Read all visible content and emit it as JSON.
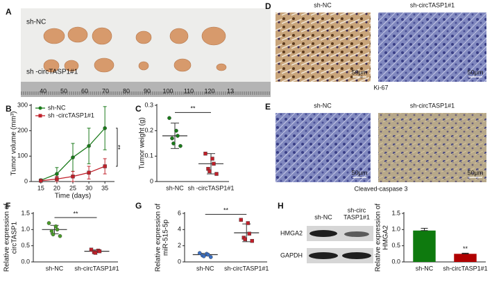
{
  "images": {
    "A": {
      "label": "A",
      "rows": [
        "sh-NC",
        "sh -circTASP1#1"
      ],
      "ruler": [
        "40",
        "50",
        "60",
        "70",
        "80",
        "90",
        "100",
        "110",
        "120",
        "13"
      ]
    },
    "D": {
      "label": "D",
      "columns": [
        "sh-NC",
        "sh-circTASP1#1"
      ],
      "scale": [
        "50μm",
        "50μm"
      ],
      "caption": "Ki-67"
    },
    "E": {
      "label": "E",
      "columns": [
        "sh-NC",
        "sh-circTASP1#1"
      ],
      "scale": [
        "50μm",
        "50μm"
      ],
      "caption": "Cleaved-caspase 3"
    },
    "H": {
      "label": "H",
      "columns": [
        [
          "sh-NC"
        ],
        [
          "sh-circ",
          "TASP1#1"
        ]
      ],
      "rows": [
        "HMGA2",
        "GAPDH"
      ]
    }
  },
  "chart_data": [
    {
      "type": "line",
      "label": "B",
      "x": [
        15,
        20,
        25,
        30,
        35
      ],
      "xlim": [
        12,
        38
      ],
      "xticks": [
        15,
        20,
        25,
        30,
        35
      ],
      "ylim": [
        0,
        300
      ],
      "yticks": [
        0,
        100,
        200,
        300
      ],
      "ylabel": "Tumor volume (mm³)",
      "xlabel": "Time (days)",
      "legend": "top-left",
      "annotation": "**",
      "series": [
        {
          "name": "sh-NC",
          "color": "#1a7a1a",
          "marker": "circle",
          "values": [
            5,
            30,
            95,
            140,
            210
          ],
          "errors": [
            5,
            25,
            55,
            70,
            85
          ]
        },
        {
          "name": "sh -circTASP1#1",
          "color": "#c0202a",
          "marker": "square",
          "values": [
            3,
            10,
            20,
            35,
            60
          ],
          "errors": [
            3,
            10,
            20,
            25,
            30
          ]
        }
      ]
    },
    {
      "type": "dot",
      "label": "C",
      "categories": [
        "sh-NC",
        "sh -circTASP1#1"
      ],
      "ylim": [
        0,
        0.3
      ],
      "yticks": [
        0,
        0.1,
        0.2,
        0.3
      ],
      "ylabel": "Tumor weight (g)",
      "annotation": "**",
      "groups": [
        {
          "color": "#1a7a1a",
          "marker": "circle",
          "values": [
            0.25,
            0.2,
            0.18,
            0.17,
            0.15,
            0.14
          ],
          "mean": 0.18,
          "sd": 0.05
        },
        {
          "color": "#c0202a",
          "marker": "square",
          "values": [
            0.11,
            0.09,
            0.07,
            0.05,
            0.04,
            0.03
          ],
          "mean": 0.07,
          "sd": 0.04
        }
      ]
    },
    {
      "type": "dot",
      "label": "F",
      "categories": [
        "sh-NC",
        "sh-circTASP1#1"
      ],
      "ylim": [
        0,
        1.5
      ],
      "yticks": [
        {
          "value": 0,
          "label": "0.0"
        },
        0.5,
        {
          "value": 1,
          "label": "1.0"
        },
        1.5
      ],
      "ylabel": [
        "Relative expression of",
        "circTASP1"
      ],
      "annotation": "**",
      "groups": [
        {
          "color": "#4a9a2a",
          "marker": "circle",
          "values": [
            1.2,
            1.1,
            1.0,
            0.95,
            0.85,
            0.8
          ],
          "mean": 1.0,
          "sd": 0.13
        },
        {
          "color": "#c0202a",
          "marker": "square",
          "values": [
            0.38,
            0.35,
            0.33,
            0.3,
            0.28
          ],
          "mean": 0.33,
          "sd": 0.04
        }
      ]
    },
    {
      "type": "dot",
      "label": "G",
      "categories": [
        "sh-NC",
        "sh-circTASP1#1"
      ],
      "ylim": [
        0,
        6
      ],
      "yticks": [
        0,
        2,
        4,
        6
      ],
      "ylabel": [
        "Relative expression of",
        "miR-515-5p"
      ],
      "annotation": "**",
      "groups": [
        {
          "color": "#3a6fc4",
          "marker": "circle",
          "values": [
            1.1,
            1.0,
            0.9,
            0.8,
            0.7,
            0.6
          ],
          "mean": 0.9,
          "sd": 0.15
        },
        {
          "color": "#c0202a",
          "marker": "square",
          "values": [
            5.2,
            4.8,
            3.5,
            3.0,
            2.8,
            2.6
          ],
          "mean": 3.6,
          "sd": 1.1
        }
      ]
    },
    {
      "type": "bar",
      "categories": [
        "sh-NC",
        "sh-circTASP1#1"
      ],
      "ylim": [
        0,
        1.5
      ],
      "yticks": [
        {
          "value": 0,
          "label": "0.0"
        },
        0.5,
        {
          "value": 1,
          "label": "1.0"
        },
        1.5
      ],
      "ylabel": [
        "Relative expression of",
        "HMGA2"
      ],
      "annotation": "**",
      "values": [
        0.97,
        0.25
      ],
      "errors": [
        0.07,
        0.02
      ],
      "colors": [
        "#0e7a0e",
        "#b00000"
      ]
    }
  ]
}
